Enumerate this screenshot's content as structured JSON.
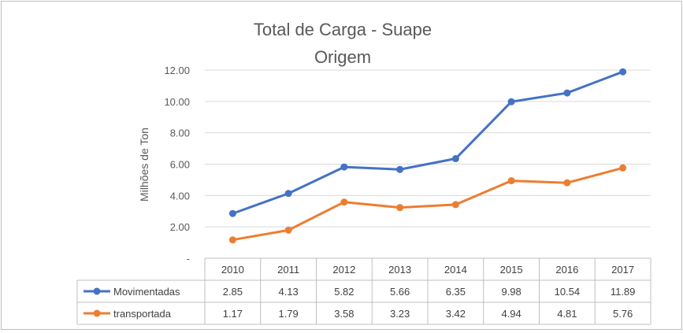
{
  "chart_data": {
    "type": "line",
    "title": "Total de Carga - Suape",
    "subtitle": "Origem",
    "ylabel": "Milhões de Ton",
    "xlabel": "",
    "categories": [
      "2010",
      "2011",
      "2012",
      "2013",
      "2014",
      "2015",
      "2016",
      "2017"
    ],
    "yticks": [
      "-",
      "2.00",
      "4.00",
      "6.00",
      "8.00",
      "10.00",
      "12.00"
    ],
    "ylim": [
      0,
      12
    ],
    "grid": true,
    "legend": "data-table",
    "series": [
      {
        "name": "Movimentadas",
        "color": "#4472c4",
        "values": [
          2.85,
          4.13,
          5.82,
          5.66,
          6.35,
          9.98,
          10.54,
          11.89
        ],
        "labels": [
          "2.85",
          "4.13",
          "5.82",
          "5.66",
          "6.35",
          "9.98",
          "10.54",
          "11.89"
        ]
      },
      {
        "name": "transportada",
        "color": "#ed7d31",
        "values": [
          1.17,
          1.79,
          3.58,
          3.23,
          3.42,
          4.94,
          4.81,
          5.76
        ],
        "labels": [
          "1.17",
          "1.79",
          "3.58",
          "3.23",
          "3.42",
          "4.94",
          "4.81",
          "5.76"
        ]
      }
    ]
  }
}
